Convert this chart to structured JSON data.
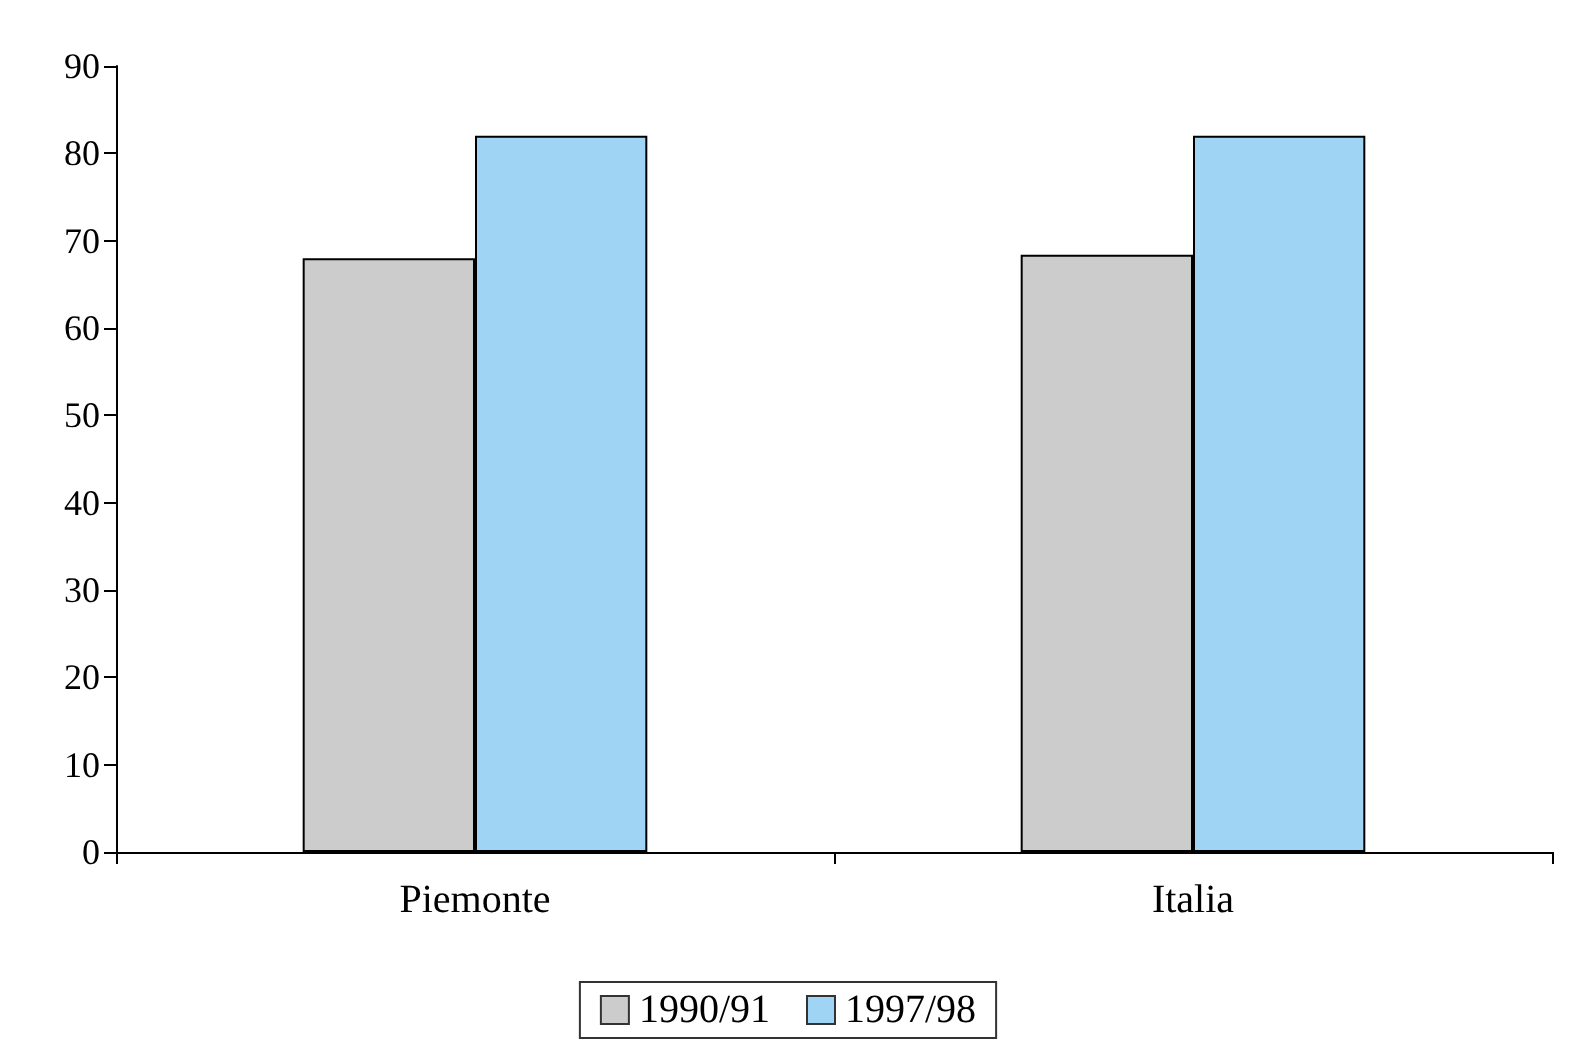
{
  "chart_data": {
    "type": "bar",
    "categories": [
      "Piemonte",
      "Italia"
    ],
    "series": [
      {
        "name": "1990/91",
        "color": "#cccccc",
        "values": [
          68,
          68.4
        ]
      },
      {
        "name": "1997/98",
        "color": "#9fd4f5",
        "values": [
          82,
          82
        ]
      }
    ],
    "ylim": [
      0,
      90
    ],
    "yticks": [
      0,
      10,
      20,
      30,
      40,
      50,
      60,
      70,
      80,
      90
    ],
    "grid": false,
    "legend": "bottom"
  }
}
